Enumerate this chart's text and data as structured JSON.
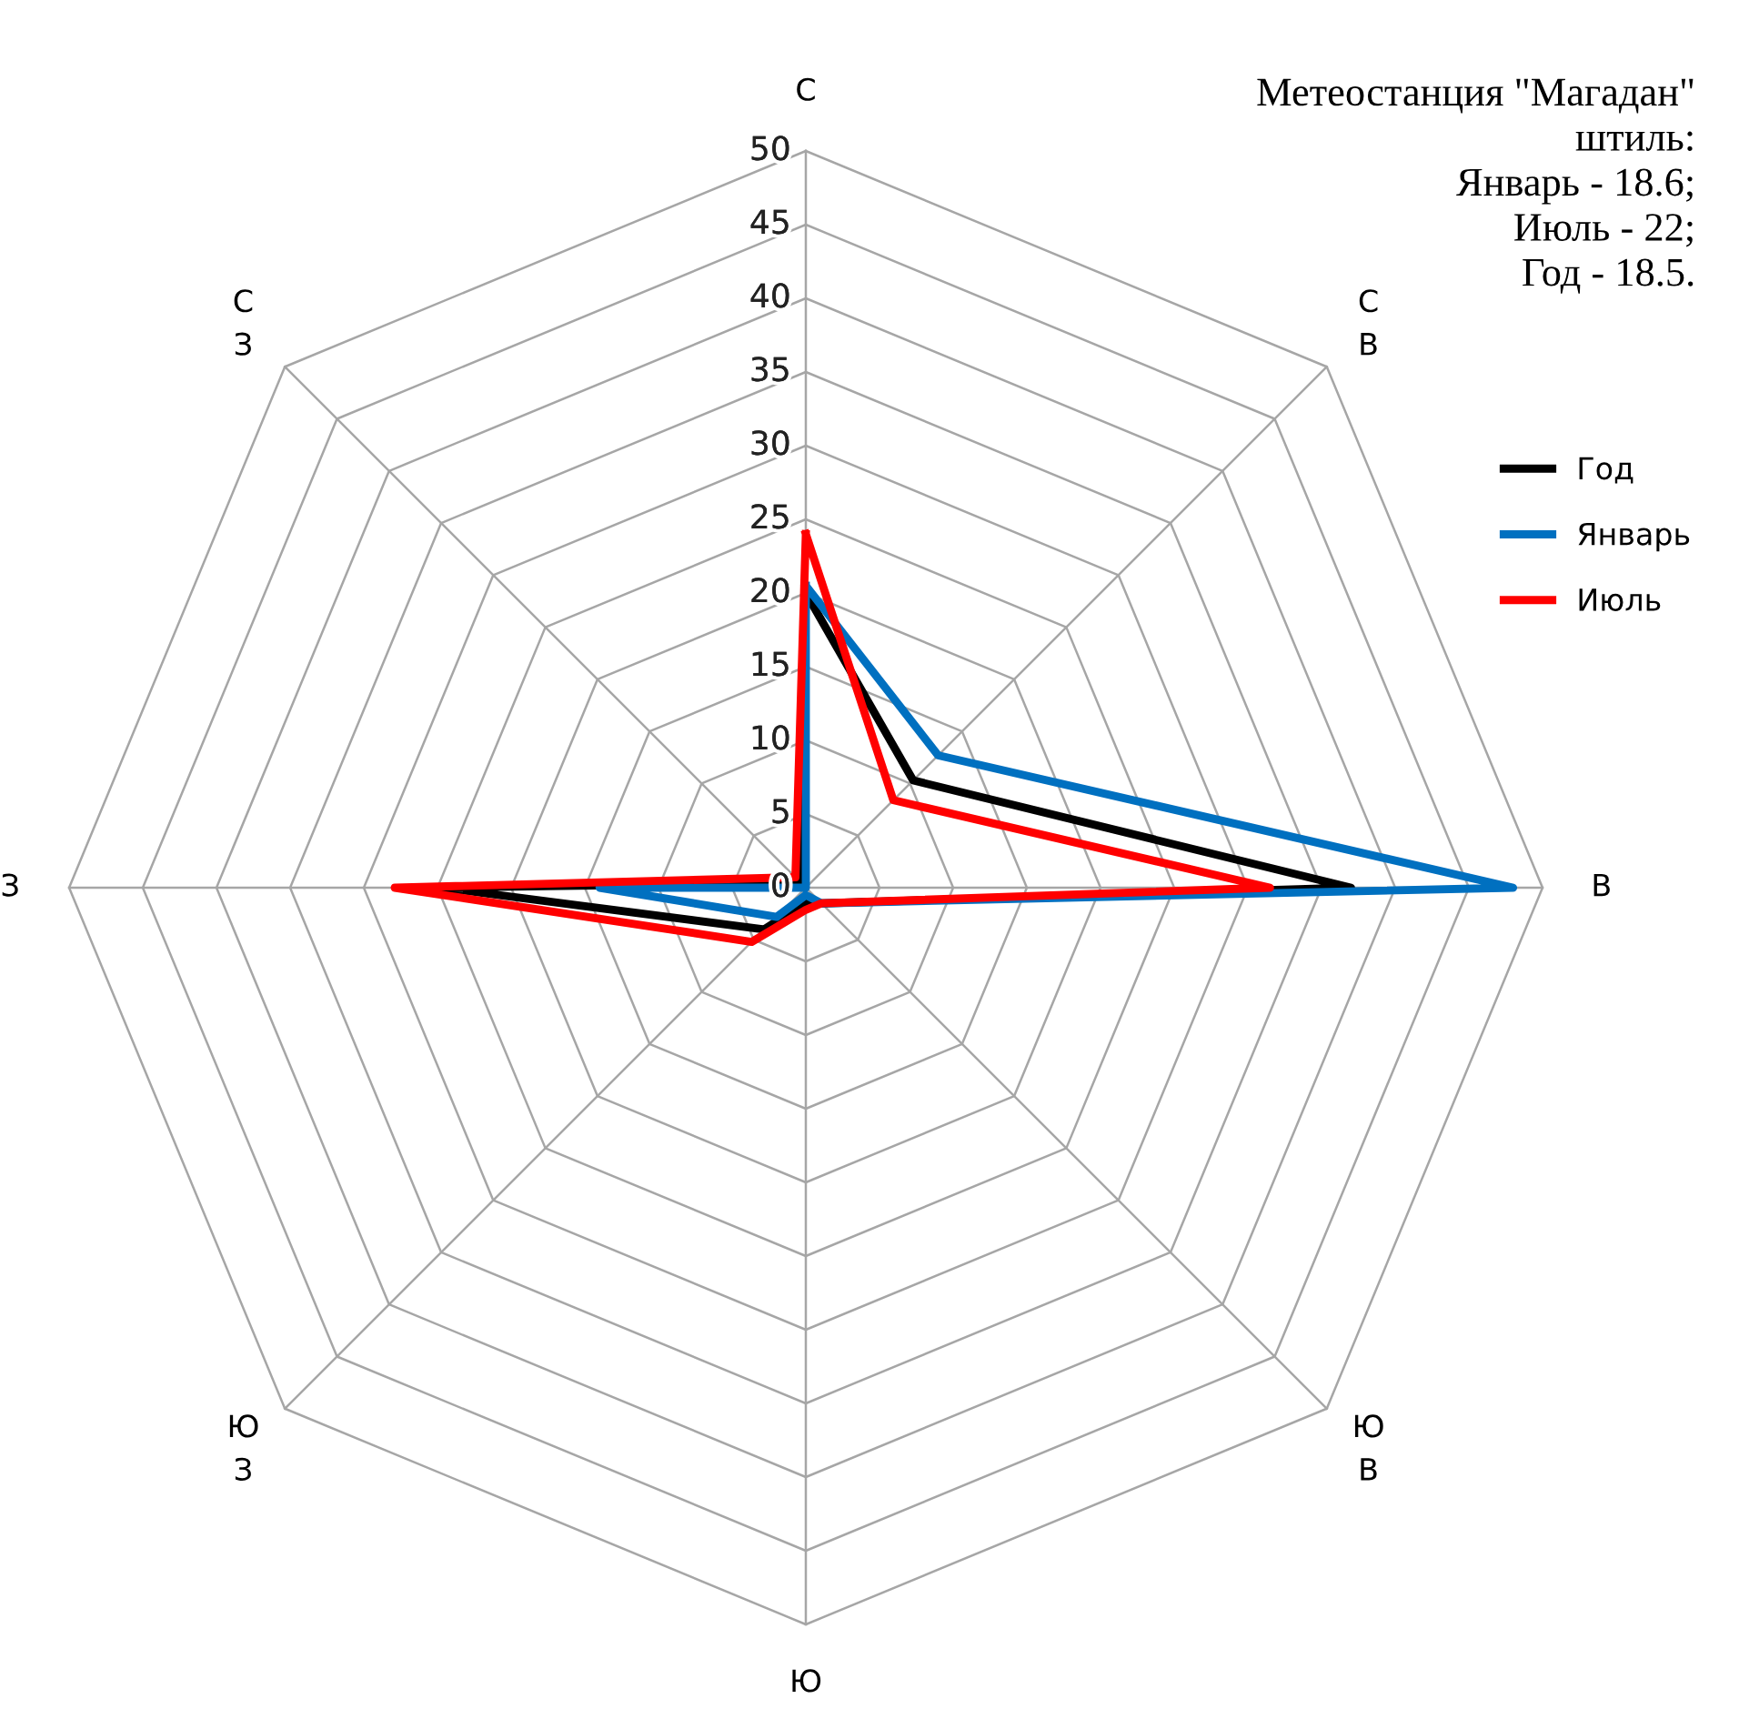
{
  "chart_data": {
    "type": "radar",
    "categories": [
      "С",
      "С\nВ",
      "В",
      "Ю\nВ",
      "Ю",
      "Ю\nЗ",
      "З",
      "С\nЗ"
    ],
    "series": [
      {
        "name": "Год",
        "color": "#000000",
        "values": [
          20,
          10.3,
          37,
          1.5,
          1,
          4,
          24.7,
          0.5
        ]
      },
      {
        "name": "Январь",
        "color": "#0070c0",
        "values": [
          20.5,
          12.7,
          48,
          1.5,
          0.5,
          2.8,
          14,
          0
        ]
      },
      {
        "name": "Июль",
        "color": "#ff0000",
        "values": [
          24,
          8.4,
          31.5,
          1.5,
          1.5,
          5.2,
          27.9,
          1
        ]
      }
    ],
    "ylim": [
      0,
      50
    ],
    "yticks": [
      0,
      5,
      10,
      15,
      20,
      25,
      30,
      35,
      40,
      45,
      50
    ],
    "grid": true,
    "legend": "right",
    "marker": "none",
    "line_style": "solid",
    "annotations": [
      "Метеостанция \"Магадан\"\nштиль:\nЯнварь - 18.6;\nИюль - 22;\nГод - 18.5."
    ]
  }
}
